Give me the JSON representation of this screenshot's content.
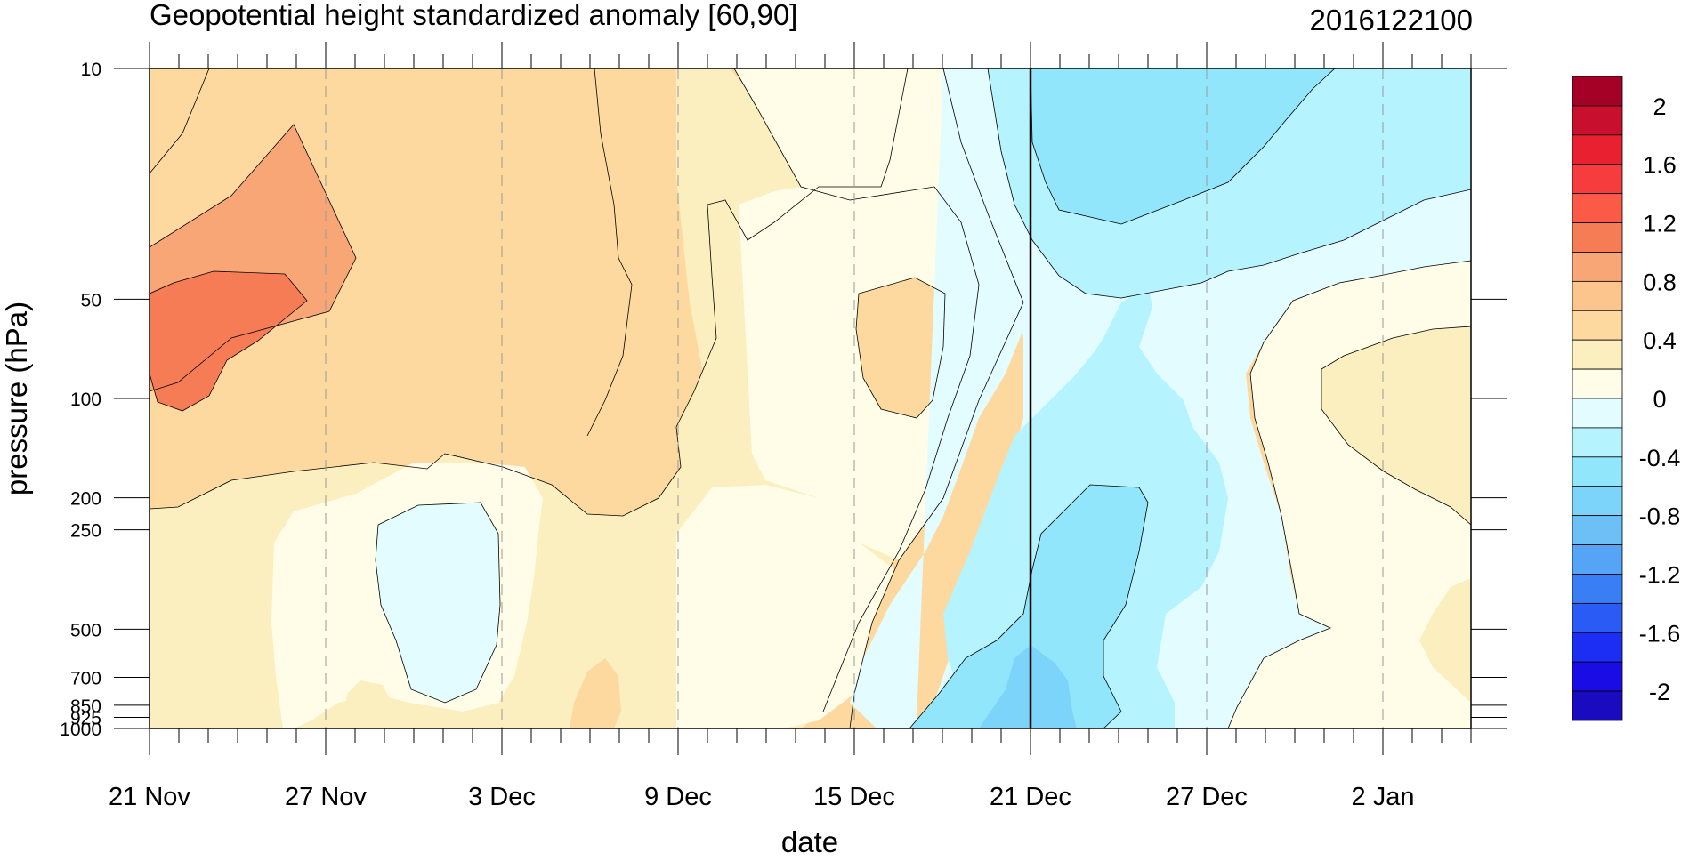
{
  "chart_data": {
    "type": "heatmap",
    "title": "Geopotential height standardized anomaly [60,90]",
    "timestamp": "2016122100",
    "xlabel": "date",
    "ylabel": "pressure (hPa)",
    "y_scale": "log",
    "y_reversed": true,
    "ylim": [
      1000,
      10
    ],
    "x_range": [
      "21 Nov",
      "5 Jan"
    ],
    "x_tick_labels": [
      "21 Nov",
      "27 Nov",
      "3 Dec",
      "9 Dec",
      "15 Dec",
      "21 Dec",
      "27 Dec",
      "2 Jan"
    ],
    "x_tick_days": [
      0,
      6,
      12,
      18,
      24,
      30,
      36,
      42
    ],
    "x_total_days": 45,
    "y_tick_labels": [
      "10",
      "50",
      "100",
      "200",
      "250",
      "500",
      "700",
      "850",
      "925",
      "1000"
    ],
    "y_tick_values": [
      10,
      50,
      100,
      200,
      250,
      500,
      700,
      850,
      925,
      1000
    ],
    "current_date_marker": "21 Dec",
    "contour_interval": 0.2,
    "colorbar": {
      "labels": [
        "2",
        "1.6",
        "1.2",
        "0.8",
        "0.4",
        "0",
        "-0.4",
        "-0.8",
        "-1.2",
        "-1.6",
        "-2"
      ],
      "levels": [
        2.2,
        2.0,
        1.8,
        1.6,
        1.4,
        1.2,
        1.0,
        0.8,
        0.6,
        0.4,
        0.2,
        0.0,
        -0.2,
        -0.4,
        -0.6,
        -0.8,
        -1.0,
        -1.2,
        -1.4,
        -1.6,
        -1.8,
        -2.0,
        -2.2
      ],
      "colors": [
        "#a50026",
        "#c8102e",
        "#e8202f",
        "#f63c3c",
        "#fa5a46",
        "#f67c55",
        "#f9a677",
        "#fcc58e",
        "#fdd9a0",
        "#fcefbf",
        "#fffde8",
        "#e3fcff",
        "#b5f3fe",
        "#92e6fb",
        "#7dd4fa",
        "#6cc0f6",
        "#56a4f6",
        "#3a7ef5",
        "#2a5cf5",
        "#1c2ef4",
        "#1a0ce5",
        "#1a0ac0"
      ]
    },
    "regions": [
      {
        "name": "warm-anomaly-0.0-0.2",
        "value_range": [
          0.0,
          0.2
        ],
        "color": "#fffde8"
      },
      {
        "name": "warm-anomaly-0.2-0.4",
        "value_range": [
          0.2,
          0.4
        ],
        "color": "#fcefbf"
      },
      {
        "name": "warm-anomaly-0.4-0.6",
        "value_range": [
          0.4,
          0.6
        ],
        "color": "#fdd9a0"
      },
      {
        "name": "warm-anomaly-0.6-0.8",
        "value_range": [
          0.6,
          0.8
        ],
        "color": "#fcc58e"
      },
      {
        "name": "warm-anomaly-0.8-1.0",
        "value_range": [
          0.8,
          1.0
        ],
        "color": "#f9a677"
      },
      {
        "name": "warm-anomaly-1.0-1.2",
        "value_range": [
          1.0,
          1.2
        ],
        "color": "#f67c55"
      },
      {
        "name": "cold-anomaly-0.0-0.2",
        "value_range": [
          -0.2,
          0.0
        ],
        "color": "#e3fcff"
      },
      {
        "name": "cold-anomaly-0.2-0.4",
        "value_range": [
          -0.4,
          -0.2
        ],
        "color": "#b5f3fe"
      },
      {
        "name": "cold-anomaly-0.4-0.6",
        "value_range": [
          -0.6,
          -0.4
        ],
        "color": "#92e6fb"
      },
      {
        "name": "cold-anomaly-0.6-0.8",
        "value_range": [
          -0.8,
          -0.6
        ],
        "color": "#7dd4fa"
      }
    ]
  }
}
